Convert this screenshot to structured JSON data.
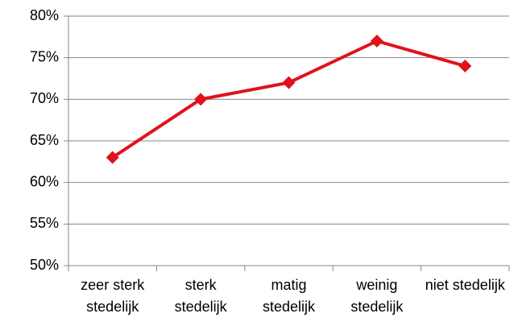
{
  "chart_data": {
    "type": "line",
    "categories": [
      "zeer sterk stedelijk",
      "sterk stedelijk",
      "matig stedelijk",
      "weinig stedelijk",
      "niet stedelijk"
    ],
    "series": [
      {
        "name": null,
        "color": "#e0121c",
        "values": [
          63,
          70,
          72,
          77,
          74
        ]
      }
    ],
    "ylim": [
      50,
      80
    ],
    "yticks": [
      {
        "value": 50,
        "label": "50%"
      },
      {
        "value": 55,
        "label": "55%"
      },
      {
        "value": 60,
        "label": "60%"
      },
      {
        "value": 65,
        "label": "65%"
      },
      {
        "value": 70,
        "label": "70%"
      },
      {
        "value": 75,
        "label": "75%"
      },
      {
        "value": 80,
        "label": "80%"
      }
    ],
    "grid": true
  }
}
